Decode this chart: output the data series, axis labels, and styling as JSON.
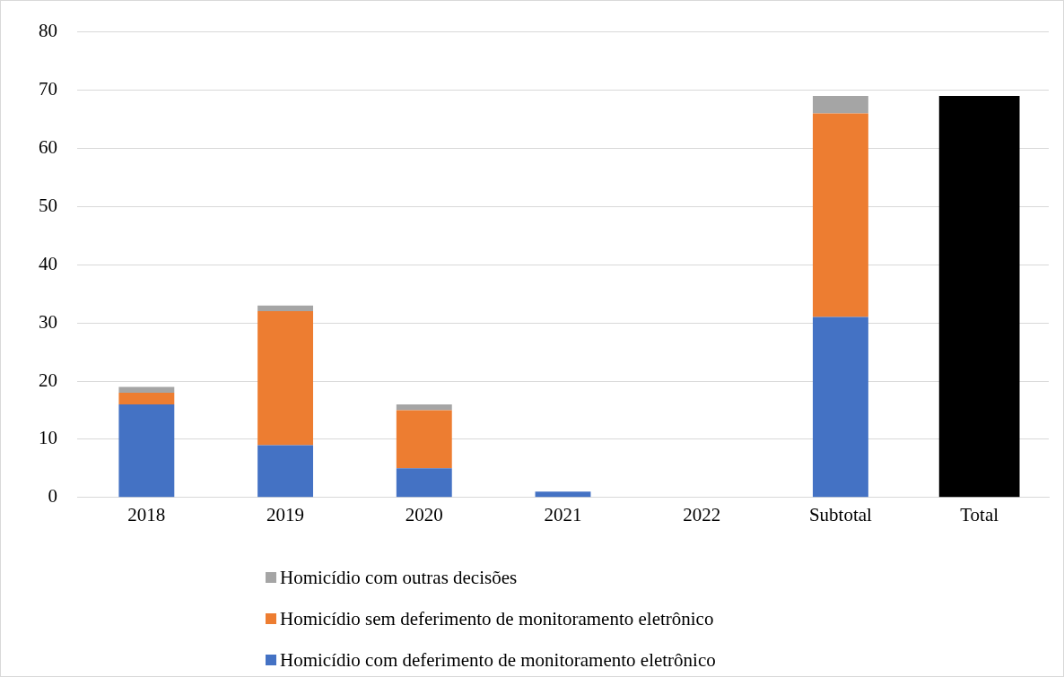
{
  "chart_data": {
    "type": "bar",
    "stacked": true,
    "categories": [
      "2018",
      "2019",
      "2020",
      "2021",
      "2022",
      "Subtotal",
      "Total"
    ],
    "series": [
      {
        "name": "Homicídio com deferimento de monitoramento eletrônico",
        "color": "#4472c4",
        "values": [
          16,
          9,
          5,
          1,
          0,
          31,
          null
        ]
      },
      {
        "name": "Homicídio sem deferimento de monitoramento eletrônico",
        "color": "#ed7d31",
        "values": [
          2,
          23,
          10,
          0,
          0,
          35,
          null
        ]
      },
      {
        "name": "Homicídio com outras decisões",
        "color": "#a5a5a5",
        "values": [
          1,
          1,
          1,
          0,
          0,
          3,
          null
        ]
      },
      {
        "color": "#000000",
        "values": [
          null,
          null,
          null,
          null,
          null,
          null,
          69
        ]
      }
    ],
    "ylim": [
      0,
      80
    ],
    "yticks": [
      0,
      10,
      20,
      30,
      40,
      50,
      60,
      70,
      80
    ],
    "grid": "y",
    "legend": "bottom"
  }
}
